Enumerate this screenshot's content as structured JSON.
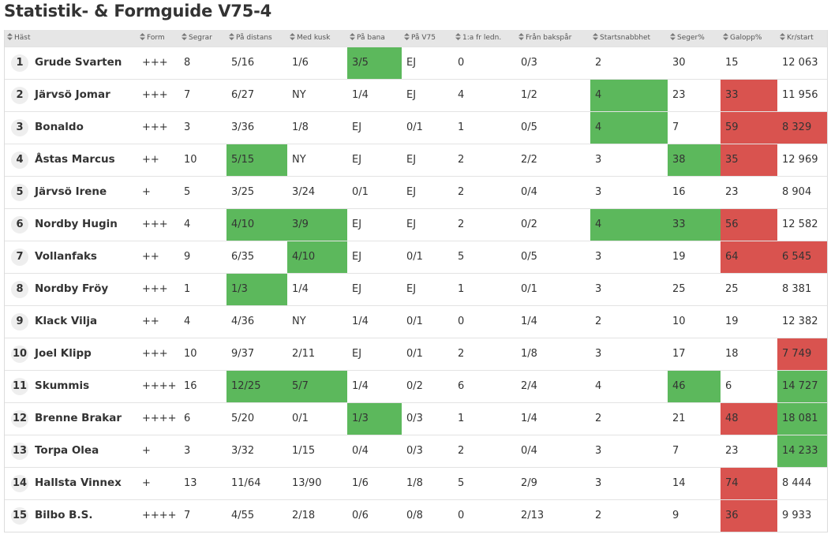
{
  "title": "Statistik- & Formguide V75-4",
  "columns": [
    {
      "key": "hast",
      "label": "Häst"
    },
    {
      "key": "form",
      "label": "Form"
    },
    {
      "key": "segrar",
      "label": "Segrar"
    },
    {
      "key": "pa_distans",
      "label": "På distans"
    },
    {
      "key": "med_kusk",
      "label": "Med kusk"
    },
    {
      "key": "pa_bana",
      "label": "På bana"
    },
    {
      "key": "pa_v75",
      "label": "På V75"
    },
    {
      "key": "fr_ledn",
      "label": "1:a fr ledn."
    },
    {
      "key": "fran_bakspar",
      "label": "Från bakspår"
    },
    {
      "key": "startsnabbhet",
      "label": "Startsnabbhet"
    },
    {
      "key": "seger_pct",
      "label": "Seger%"
    },
    {
      "key": "galopp_pct",
      "label": "Galopp%"
    },
    {
      "key": "kr_start",
      "label": "Kr/start"
    }
  ],
  "highlight_colors": {
    "good": "#5cb85c",
    "bad": "#d9534f"
  },
  "rows": [
    {
      "num": "1",
      "name": "Grude Svarten",
      "form": "+++",
      "segrar": "8",
      "pa_distans": "5/16",
      "med_kusk": "1/6",
      "pa_bana": "3/5",
      "pa_v75": "EJ",
      "fr_ledn": "0",
      "fran_bakspar": "0/3",
      "startsnabbhet": "2",
      "seger_pct": "30",
      "galopp_pct": "15",
      "kr_start": "12 063",
      "highlight": {
        "pa_bana": "good"
      }
    },
    {
      "num": "2",
      "name": "Järvsö Jomar",
      "form": "+++",
      "segrar": "7",
      "pa_distans": "6/27",
      "med_kusk": "NY",
      "pa_bana": "1/4",
      "pa_v75": "EJ",
      "fr_ledn": "4",
      "fran_bakspar": "1/2",
      "startsnabbhet": "4",
      "seger_pct": "23",
      "galopp_pct": "33",
      "kr_start": "11 956",
      "highlight": {
        "startsnabbhet": "good",
        "galopp_pct": "bad"
      }
    },
    {
      "num": "3",
      "name": "Bonaldo",
      "form": "+++",
      "segrar": "3",
      "pa_distans": "3/36",
      "med_kusk": "1/8",
      "pa_bana": "EJ",
      "pa_v75": "0/1",
      "fr_ledn": "1",
      "fran_bakspar": "0/5",
      "startsnabbhet": "4",
      "seger_pct": "7",
      "galopp_pct": "59",
      "kr_start": "8 329",
      "highlight": {
        "startsnabbhet": "good",
        "galopp_pct": "bad",
        "kr_start": "bad"
      }
    },
    {
      "num": "4",
      "name": "Åstas Marcus",
      "form": "++",
      "segrar": "10",
      "pa_distans": "5/15",
      "med_kusk": "NY",
      "pa_bana": "EJ",
      "pa_v75": "EJ",
      "fr_ledn": "2",
      "fran_bakspar": "2/2",
      "startsnabbhet": "3",
      "seger_pct": "38",
      "galopp_pct": "35",
      "kr_start": "12 969",
      "highlight": {
        "pa_distans": "good",
        "seger_pct": "good",
        "galopp_pct": "bad"
      }
    },
    {
      "num": "5",
      "name": "Järvsö Irene",
      "form": "+",
      "segrar": "5",
      "pa_distans": "3/25",
      "med_kusk": "3/24",
      "pa_bana": "0/1",
      "pa_v75": "EJ",
      "fr_ledn": "2",
      "fran_bakspar": "0/4",
      "startsnabbhet": "3",
      "seger_pct": "16",
      "galopp_pct": "23",
      "kr_start": "8 904",
      "highlight": {}
    },
    {
      "num": "6",
      "name": "Nordby Hugin",
      "form": "+++",
      "segrar": "4",
      "pa_distans": "4/10",
      "med_kusk": "3/9",
      "pa_bana": "EJ",
      "pa_v75": "EJ",
      "fr_ledn": "2",
      "fran_bakspar": "0/2",
      "startsnabbhet": "4",
      "seger_pct": "33",
      "galopp_pct": "56",
      "kr_start": "12 582",
      "highlight": {
        "pa_distans": "good",
        "med_kusk": "good",
        "startsnabbhet": "good",
        "seger_pct": "good",
        "galopp_pct": "bad"
      }
    },
    {
      "num": "7",
      "name": "Vollanfaks",
      "form": "++",
      "segrar": "9",
      "pa_distans": "6/35",
      "med_kusk": "4/10",
      "pa_bana": "EJ",
      "pa_v75": "0/1",
      "fr_ledn": "5",
      "fran_bakspar": "0/5",
      "startsnabbhet": "3",
      "seger_pct": "19",
      "galopp_pct": "64",
      "kr_start": "6 545",
      "highlight": {
        "med_kusk": "good",
        "galopp_pct": "bad",
        "kr_start": "bad"
      }
    },
    {
      "num": "8",
      "name": "Nordby Fröy",
      "form": "+++",
      "segrar": "1",
      "pa_distans": "1/3",
      "med_kusk": "1/4",
      "pa_bana": "EJ",
      "pa_v75": "EJ",
      "fr_ledn": "1",
      "fran_bakspar": "0/1",
      "startsnabbhet": "3",
      "seger_pct": "25",
      "galopp_pct": "25",
      "kr_start": "8 381",
      "highlight": {
        "pa_distans": "good"
      }
    },
    {
      "num": "9",
      "name": "Klack Vilja",
      "form": "++",
      "segrar": "4",
      "pa_distans": "4/36",
      "med_kusk": "NY",
      "pa_bana": "1/4",
      "pa_v75": "0/1",
      "fr_ledn": "0",
      "fran_bakspar": "1/4",
      "startsnabbhet": "2",
      "seger_pct": "10",
      "galopp_pct": "19",
      "kr_start": "12 382",
      "highlight": {}
    },
    {
      "num": "10",
      "name": "Joel Klipp",
      "form": "+++",
      "segrar": "10",
      "pa_distans": "9/37",
      "med_kusk": "2/11",
      "pa_bana": "EJ",
      "pa_v75": "0/1",
      "fr_ledn": "2",
      "fran_bakspar": "1/8",
      "startsnabbhet": "3",
      "seger_pct": "17",
      "galopp_pct": "18",
      "kr_start": "7 749",
      "highlight": {
        "kr_start": "bad"
      }
    },
    {
      "num": "11",
      "name": "Skummis",
      "form": "++++",
      "segrar": "16",
      "pa_distans": "12/25",
      "med_kusk": "5/7",
      "pa_bana": "1/4",
      "pa_v75": "0/2",
      "fr_ledn": "6",
      "fran_bakspar": "2/4",
      "startsnabbhet": "4",
      "seger_pct": "46",
      "galopp_pct": "6",
      "kr_start": "14 727",
      "highlight": {
        "pa_distans": "good",
        "med_kusk": "good",
        "seger_pct": "good",
        "kr_start": "good"
      }
    },
    {
      "num": "12",
      "name": "Brenne Brakar",
      "form": "++++",
      "segrar": "6",
      "pa_distans": "5/20",
      "med_kusk": "0/1",
      "pa_bana": "1/3",
      "pa_v75": "0/3",
      "fr_ledn": "1",
      "fran_bakspar": "1/4",
      "startsnabbhet": "2",
      "seger_pct": "21",
      "galopp_pct": "48",
      "kr_start": "18 081",
      "highlight": {
        "pa_bana": "good",
        "galopp_pct": "bad",
        "kr_start": "good"
      }
    },
    {
      "num": "13",
      "name": "Torpa Olea",
      "form": "+",
      "segrar": "3",
      "pa_distans": "3/32",
      "med_kusk": "1/15",
      "pa_bana": "0/4",
      "pa_v75": "0/3",
      "fr_ledn": "2",
      "fran_bakspar": "0/4",
      "startsnabbhet": "3",
      "seger_pct": "7",
      "galopp_pct": "23",
      "kr_start": "14 233",
      "highlight": {
        "kr_start": "good"
      }
    },
    {
      "num": "14",
      "name": "Hallsta Vinnex",
      "form": "+",
      "segrar": "13",
      "pa_distans": "11/64",
      "med_kusk": "13/90",
      "pa_bana": "1/6",
      "pa_v75": "1/8",
      "fr_ledn": "5",
      "fran_bakspar": "2/9",
      "startsnabbhet": "3",
      "seger_pct": "14",
      "galopp_pct": "74",
      "kr_start": "8 444",
      "highlight": {
        "galopp_pct": "bad"
      }
    },
    {
      "num": "15",
      "name": "Bilbo B.S.",
      "form": "++++",
      "segrar": "7",
      "pa_distans": "4/55",
      "med_kusk": "2/18",
      "pa_bana": "0/6",
      "pa_v75": "0/8",
      "fr_ledn": "0",
      "fran_bakspar": "2/13",
      "startsnabbhet": "2",
      "seger_pct": "9",
      "galopp_pct": "36",
      "kr_start": "9 933",
      "highlight": {
        "galopp_pct": "bad"
      }
    }
  ]
}
